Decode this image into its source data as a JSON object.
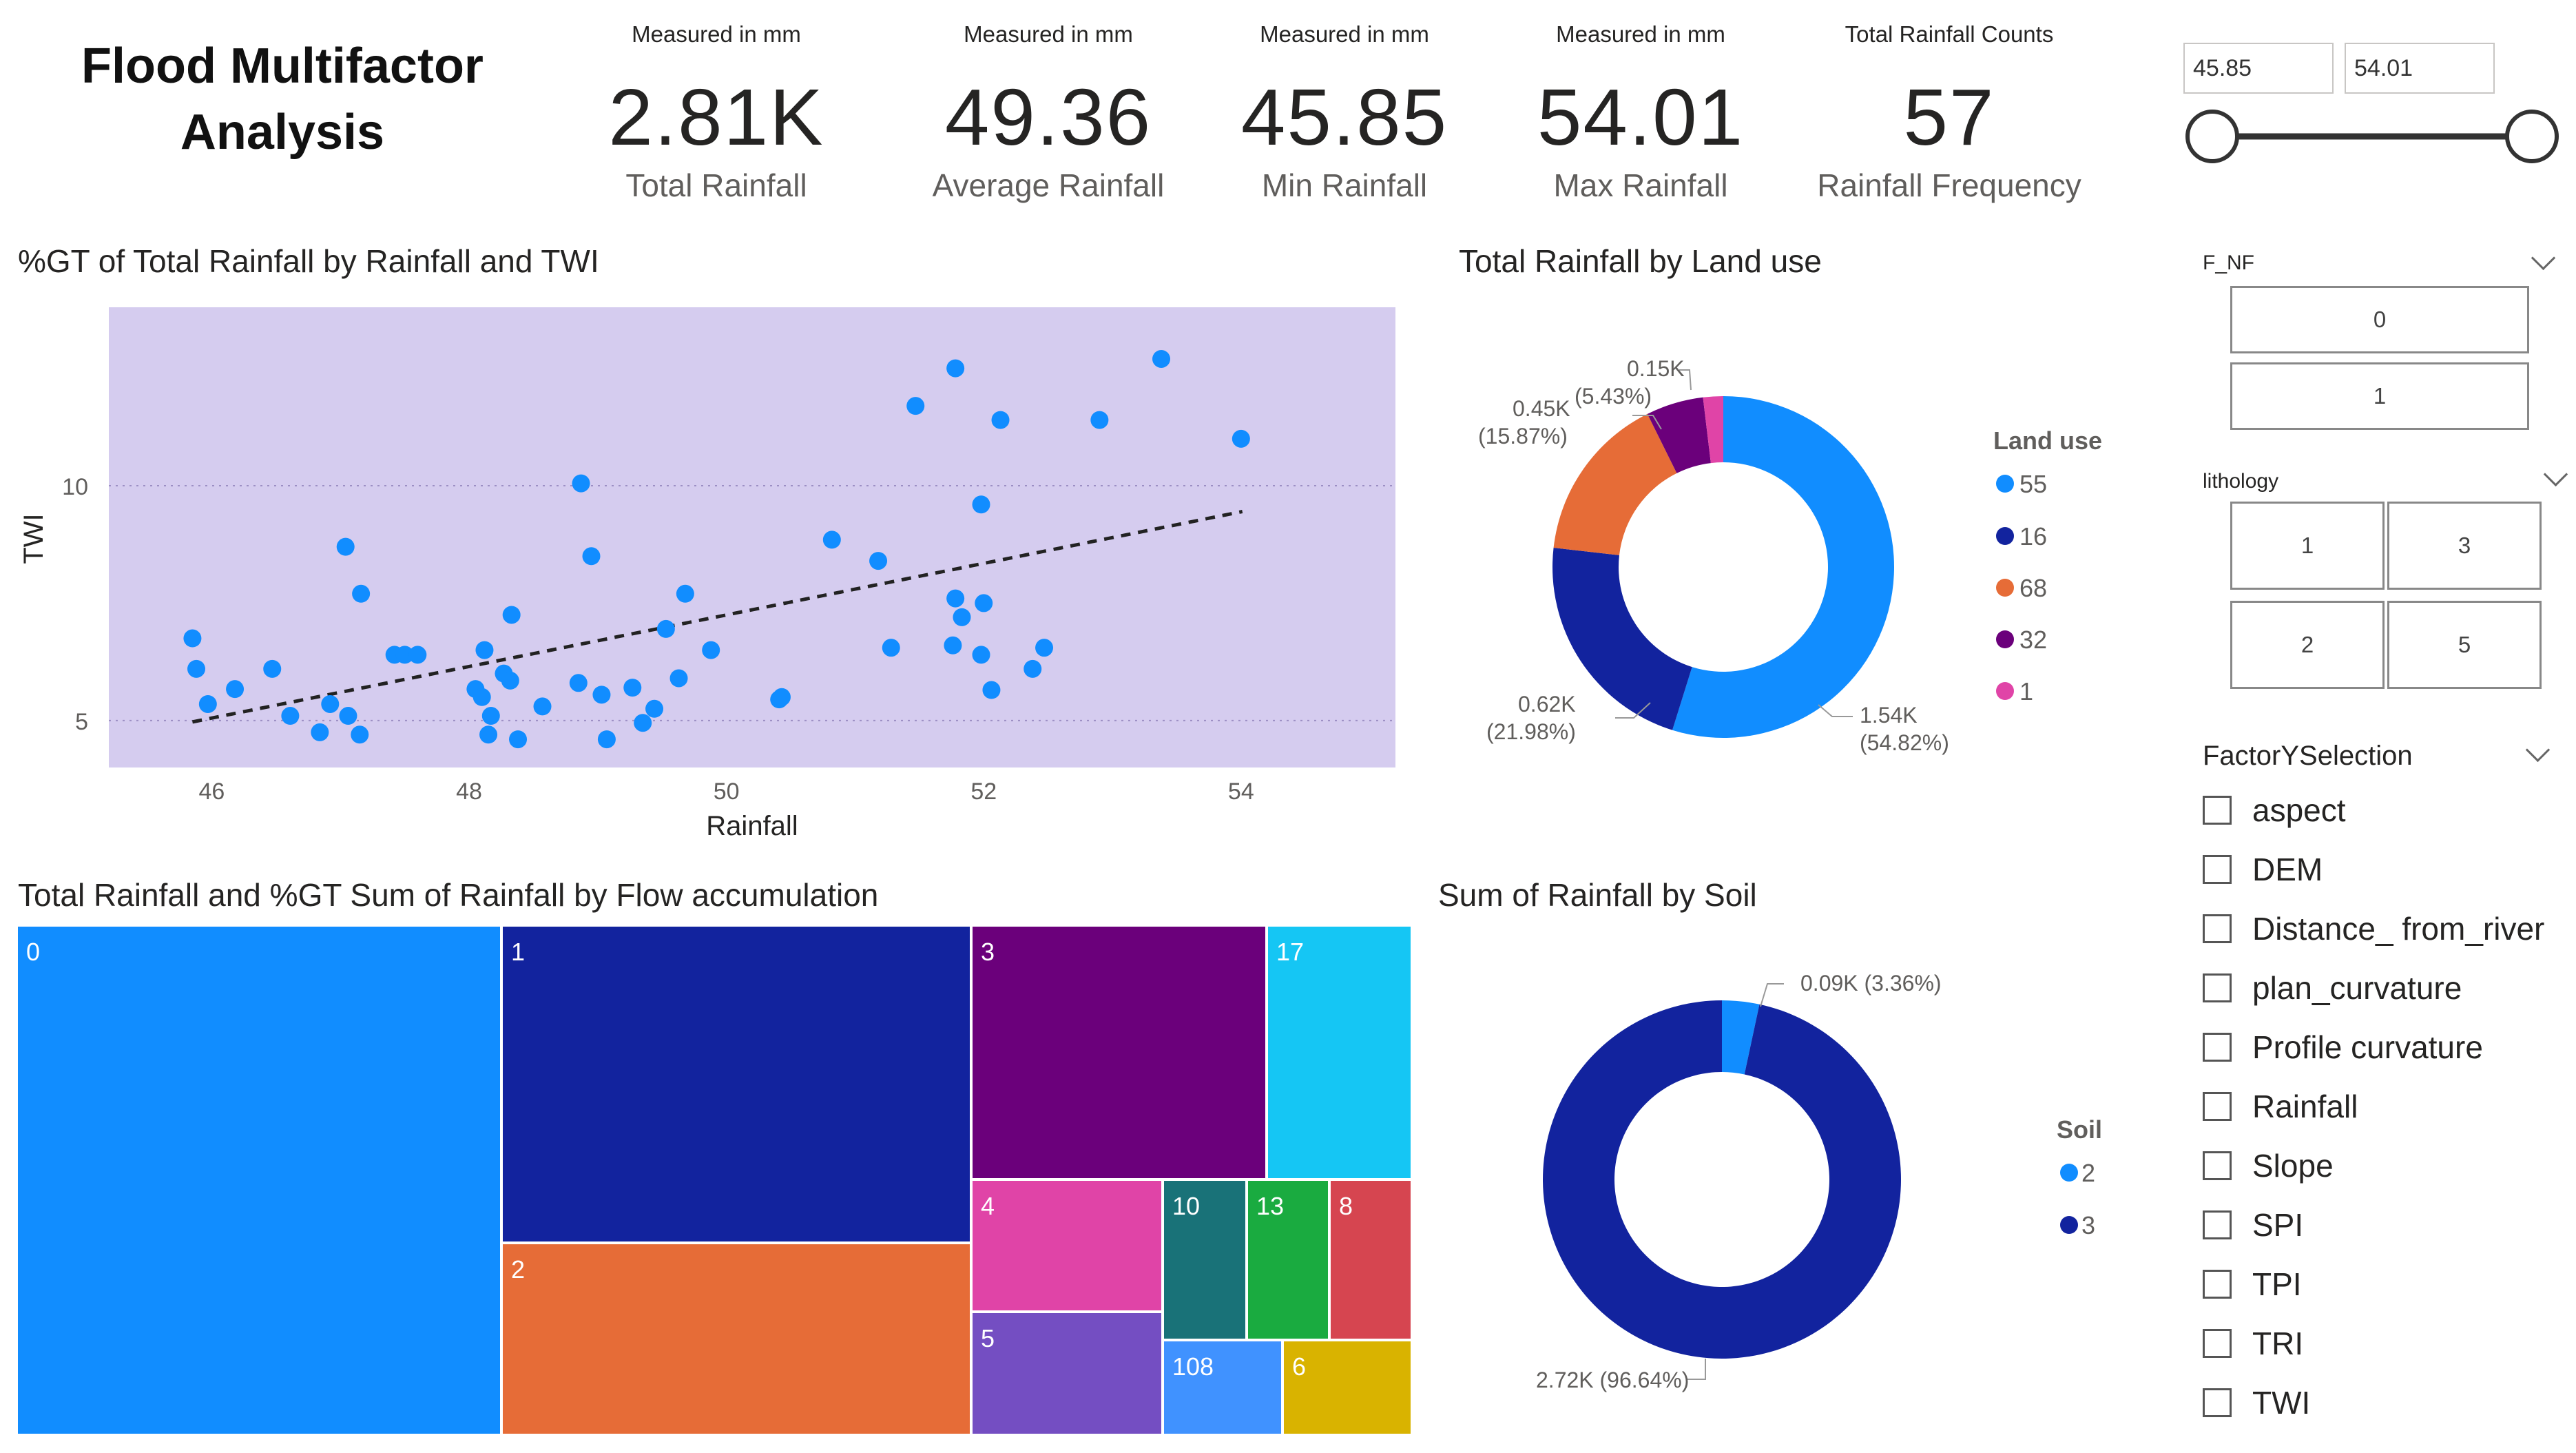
{
  "header": {
    "title_line1": "Flood Multifactor",
    "title_line2": "Analysis"
  },
  "kpis": [
    {
      "caption": "Measured in mm",
      "value": "2.81K",
      "label": "Total Rainfall"
    },
    {
      "caption": "Measured in mm",
      "value": "49.36",
      "label": "Average Rainfall"
    },
    {
      "caption": "Measured in mm",
      "value": "45.85",
      "label": "Min Rainfall"
    },
    {
      "caption": "Measured in mm",
      "value": "54.01",
      "label": "Max Rainfall"
    },
    {
      "caption": "Total Rainfall Counts",
      "value": "57",
      "label": "Rainfall Frequency"
    }
  ],
  "slider": {
    "min_value": "45.85",
    "max_value": "54.01",
    "min_fraction": 0,
    "max_fraction": 1
  },
  "visuals": {
    "scatter_title": "%GT of Total Rainfall by Rainfall and TWI",
    "landuse_title": "Total Rainfall by Land use",
    "treemap_title": "Total Rainfall and %GT Sum of Rainfall by Flow accumulation",
    "soil_title": "Sum of Rainfall by Soil"
  },
  "slicers": {
    "fnf": {
      "label": "F_NF",
      "options": [
        "0",
        "1"
      ]
    },
    "lithology": {
      "label": "lithology",
      "options": [
        "1",
        "3",
        "2",
        "5"
      ]
    },
    "factor": {
      "label": "FactorYSelection",
      "options": [
        "aspect",
        "DEM",
        "Distance_ from_river",
        "plan_curvature",
        "Profile curvature",
        "Rainfall",
        "Slope",
        "SPI",
        "TPI",
        "TRI",
        "TWI"
      ]
    }
  },
  "chart_data": [
    {
      "type": "scatter",
      "title": "%GT of Total Rainfall by Rainfall and TWI",
      "xlabel": "Rainfall",
      "ylabel": "TWI",
      "xlim": [
        45.2,
        55.2
      ],
      "ylim": [
        4.0,
        13.8
      ],
      "xticks": [
        "46",
        "48",
        "50",
        "52",
        "54"
      ],
      "xtick_values": [
        46,
        48,
        50,
        52,
        54
      ],
      "yticks": [
        "5",
        "10"
      ],
      "ytick_values": [
        5,
        10
      ],
      "trendline": {
        "x1": 45.85,
        "y1": 4.97,
        "x2": 54.01,
        "y2": 9.45
      },
      "point_color": "#118DFF",
      "background_color": "#D5CCEF",
      "points": [
        [
          45.85,
          6.75
        ],
        [
          45.88,
          6.1
        ],
        [
          45.97,
          5.35
        ],
        [
          46.18,
          5.67
        ],
        [
          46.47,
          6.1
        ],
        [
          46.61,
          5.1
        ],
        [
          46.84,
          4.75
        ],
        [
          46.92,
          5.35
        ],
        [
          47.04,
          8.7
        ],
        [
          47.06,
          5.1
        ],
        [
          47.15,
          4.7
        ],
        [
          47.16,
          7.7
        ],
        [
          47.42,
          6.4
        ],
        [
          47.5,
          6.4
        ],
        [
          47.6,
          6.4
        ],
        [
          48.05,
          5.67
        ],
        [
          48.1,
          5.5
        ],
        [
          48.12,
          6.5
        ],
        [
          48.15,
          4.7
        ],
        [
          48.17,
          5.1
        ],
        [
          48.27,
          6.0
        ],
        [
          48.32,
          5.85
        ],
        [
          48.33,
          7.25
        ],
        [
          48.38,
          4.6
        ],
        [
          48.57,
          5.3
        ],
        [
          48.85,
          5.8
        ],
        [
          48.87,
          10.05
        ],
        [
          48.95,
          8.5
        ],
        [
          49.03,
          5.55
        ],
        [
          49.07,
          4.6
        ],
        [
          49.27,
          5.7
        ],
        [
          49.35,
          4.95
        ],
        [
          49.44,
          5.25
        ],
        [
          49.53,
          6.95
        ],
        [
          49.63,
          5.9
        ],
        [
          49.68,
          7.7
        ],
        [
          49.88,
          6.5
        ],
        [
          50.41,
          5.45
        ],
        [
          50.43,
          5.5
        ],
        [
          50.82,
          8.85
        ],
        [
          51.18,
          8.4
        ],
        [
          51.28,
          6.55
        ],
        [
          51.47,
          11.7
        ],
        [
          51.76,
          6.6
        ],
        [
          51.78,
          12.5
        ],
        [
          51.78,
          7.6
        ],
        [
          51.83,
          7.2
        ],
        [
          51.98,
          6.4
        ],
        [
          51.98,
          9.6
        ],
        [
          52.0,
          7.5
        ],
        [
          52.06,
          5.65
        ],
        [
          52.13,
          11.4
        ],
        [
          52.38,
          6.1
        ],
        [
          52.47,
          6.55
        ],
        [
          52.9,
          11.4
        ],
        [
          53.38,
          12.7
        ],
        [
          54.0,
          11.0
        ]
      ]
    },
    {
      "type": "pie",
      "title": "Total Rainfall by Land use",
      "legend_title": "Land use",
      "categories": [
        "55",
        "16",
        "68",
        "32",
        "1"
      ],
      "values": [
        1.54,
        0.62,
        0.45,
        0.15,
        0.04
      ],
      "percents": [
        54.82,
        21.98,
        15.87,
        5.43,
        1.9
      ],
      "value_labels": [
        "1.54K",
        "0.62K",
        "0.45K",
        "0.15K",
        ""
      ],
      "percent_labels": [
        "(54.82%)",
        "(21.98%)",
        "(15.87%)",
        "(5.43%)",
        ""
      ],
      "colors": [
        "#118DFF",
        "#12239E",
        "#E66C37",
        "#6B007B",
        "#E044A7"
      ]
    },
    {
      "type": "treemap",
      "title": "Total Rainfall and %GT Sum of Rainfall by Flow accumulation",
      "categories": [
        "0",
        "1",
        "2",
        "3",
        "17",
        "4",
        "10",
        "13",
        "8",
        "5",
        "108",
        "6"
      ],
      "colors": [
        "#118DFF",
        "#12239E",
        "#E66C37",
        "#6B007B",
        "#15C6F4",
        "#E044A7",
        "#197278",
        "#1AAB40",
        "#D64550",
        "#744EC2",
        "#4092FF",
        "#D9B300"
      ]
    },
    {
      "type": "pie",
      "title": "Sum of Rainfall by Soil",
      "legend_title": "Soil",
      "categories": [
        "2",
        "3"
      ],
      "values": [
        0.09,
        2.72
      ],
      "percents": [
        3.36,
        96.64
      ],
      "labels": [
        "0.09K (3.36%)",
        "2.72K (96.64%)"
      ],
      "colors": [
        "#118DFF",
        "#12239E"
      ]
    }
  ]
}
